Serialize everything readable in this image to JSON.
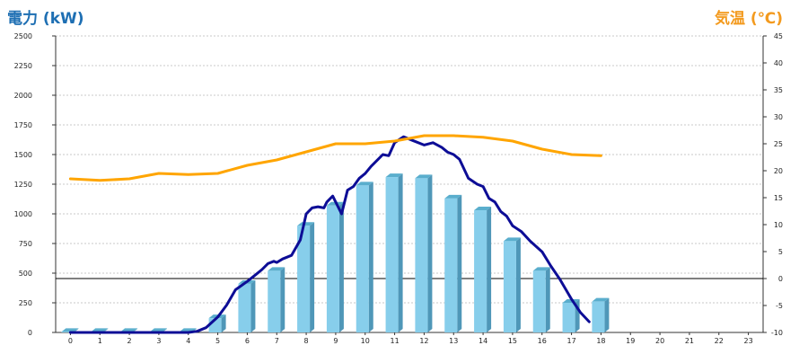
{
  "chart_data": {
    "type": "bar",
    "y_left_label": "電力 (kW)",
    "y_right_label": "気温 (℃)",
    "x": [
      0,
      1,
      2,
      3,
      4,
      5,
      6,
      7,
      8,
      9,
      10,
      11,
      12,
      13,
      14,
      15,
      16,
      17,
      18,
      19,
      20,
      21,
      22,
      23
    ],
    "x_ticks": [
      "0",
      "1",
      "2",
      "3",
      "4",
      "5",
      "6",
      "7",
      "8",
      "9",
      "10",
      "11",
      "12",
      "13",
      "14",
      "15",
      "16",
      "17",
      "18",
      "19",
      "20",
      "21",
      "22",
      "23"
    ],
    "ylim_left": [
      0,
      2500
    ],
    "y_left_ticks": [
      "0",
      "250",
      "500",
      "750",
      "1000",
      "1250",
      "1500",
      "1750",
      "2000",
      "2250",
      "2500"
    ],
    "ylim_right": [
      -10,
      45
    ],
    "y_right_ticks": [
      "-10",
      "-5",
      "0",
      "5",
      "10",
      "15",
      "20",
      "25",
      "30",
      "35",
      "40",
      "45"
    ],
    "grid": true,
    "zero_reference_line": 0,
    "series": [
      {
        "kind": "bar",
        "axis": "left",
        "color": "#87ceeb",
        "x": [
          0,
          1,
          2,
          3,
          4,
          5,
          6,
          7,
          8,
          9,
          10,
          11,
          12,
          13,
          14,
          15,
          16,
          17,
          18
        ],
        "values": [
          5,
          5,
          5,
          5,
          5,
          120,
          410,
          520,
          900,
          1070,
          1240,
          1310,
          1300,
          1130,
          1030,
          770,
          520,
          250,
          260
        ]
      },
      {
        "kind": "line",
        "axis": "left",
        "color": "#0d0d96",
        "x": [
          0,
          1,
          2,
          3,
          4,
          4.3,
          4.6,
          5,
          5.3,
          5.6,
          6,
          6.3,
          6.5,
          6.7,
          6.9,
          7,
          7.2,
          7.5,
          7.8,
          8,
          8.2,
          8.4,
          8.6,
          8.7,
          8.9,
          9,
          9.2,
          9.4,
          9.6,
          9.8,
          10,
          10.2,
          10.4,
          10.6,
          10.8,
          11,
          11.3,
          11.6,
          12,
          12.3,
          12.6,
          12.8,
          13,
          13.2,
          13.5,
          13.8,
          14,
          14.2,
          14.4,
          14.6,
          14.8,
          15,
          15.3,
          15.6,
          16,
          16.3,
          16.6,
          17,
          17.3,
          17.6
        ],
        "values": [
          0,
          0,
          0,
          0,
          0,
          10,
          40,
          130,
          230,
          360,
          430,
          490,
          530,
          580,
          600,
          590,
          620,
          650,
          780,
          1000,
          1050,
          1060,
          1050,
          1100,
          1150,
          1100,
          1000,
          1200,
          1230,
          1300,
          1340,
          1400,
          1450,
          1500,
          1490,
          1600,
          1650,
          1620,
          1580,
          1600,
          1560,
          1520,
          1500,
          1460,
          1300,
          1250,
          1230,
          1130,
          1100,
          1020,
          980,
          900,
          850,
          770,
          680,
          560,
          450,
          280,
          170,
          90
        ]
      },
      {
        "kind": "line",
        "axis": "right",
        "color": "#ffa500",
        "x": [
          0,
          1,
          2,
          3,
          4,
          5,
          6,
          7,
          8,
          9,
          10,
          11,
          12,
          13,
          14,
          15,
          16,
          17,
          18
        ],
        "values": [
          18.5,
          18.2,
          18.5,
          19.5,
          19.3,
          19.5,
          21,
          22,
          23.5,
          25,
          25,
          25.5,
          26.5,
          26.5,
          26.2,
          25.5,
          24,
          23,
          22.8
        ]
      }
    ]
  }
}
